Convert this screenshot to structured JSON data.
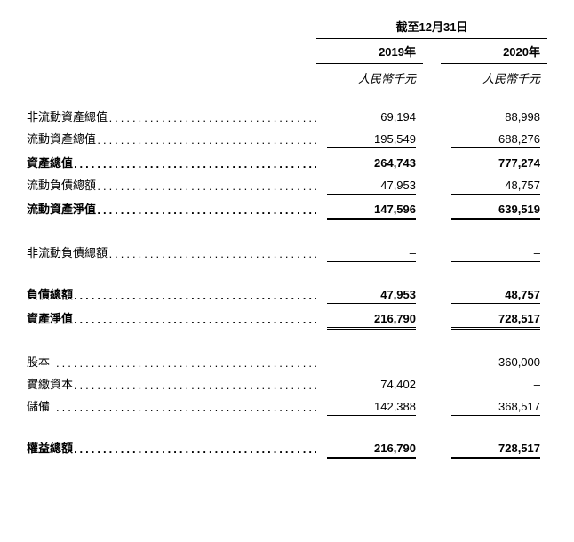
{
  "header": {
    "title": "截至12月31日",
    "year1": "2019年",
    "year2": "2020年",
    "unit": "人民幣千元"
  },
  "rows": {
    "r1": {
      "label": "非流動資產總值",
      "v1": "69,194",
      "v2": "88,998"
    },
    "r2": {
      "label": "流動資產總值",
      "v1": "195,549",
      "v2": "688,276"
    },
    "r3": {
      "label": "資產總值",
      "v1": "264,743",
      "v2": "777,274"
    },
    "r4": {
      "label": "流動負債總額",
      "v1": "47,953",
      "v2": "48,757"
    },
    "r5": {
      "label": "流動資產淨值",
      "v1": "147,596",
      "v2": "639,519"
    },
    "r6": {
      "label": "非流動負債總額",
      "v1": "–",
      "v2": "–"
    },
    "r7": {
      "label": "負債總額",
      "v1": "47,953",
      "v2": "48,757"
    },
    "r8": {
      "label": "資產淨值",
      "v1": "216,790",
      "v2": "728,517"
    },
    "r9": {
      "label": "股本",
      "v1": "–",
      "v2": "360,000"
    },
    "r10": {
      "label": "實繳資本",
      "v1": "74,402",
      "v2": "–"
    },
    "r11": {
      "label": "儲備",
      "v1": "142,388",
      "v2": "368,517"
    },
    "r12": {
      "label": "權益總額",
      "v1": "216,790",
      "v2": "728,517"
    }
  },
  "colors": {
    "text": "#000000",
    "background": "#ffffff"
  },
  "structure_type": "table"
}
